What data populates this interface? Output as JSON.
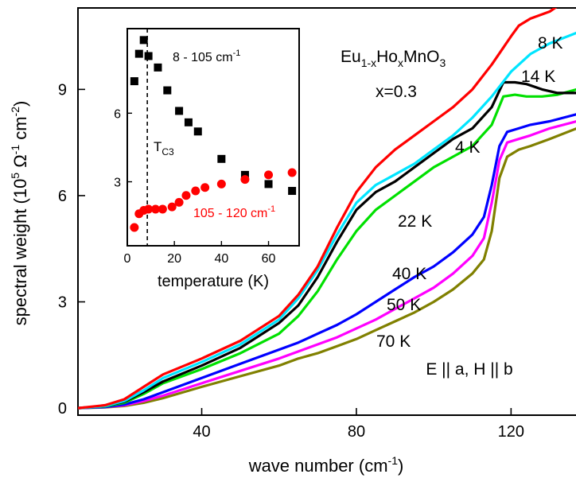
{
  "chart_data": [
    {
      "type": "line",
      "xlabel_main": "wave number (cm",
      "xlabel_sup": "-1",
      "xlabel_close": ")",
      "ylabel_main": "spectral weight (10",
      "ylabel_sup1": "5",
      "ylabel_unit": " Ω",
      "ylabel_sup2": "-1",
      "ylabel_unit2": " cm",
      "ylabel_sup3": "-2",
      "ylabel_close": ")",
      "xlim": [
        8,
        137
      ],
      "ylim": [
        -0.2,
        11.3
      ],
      "xticks": [
        40,
        80,
        120
      ],
      "yticks": [
        0,
        3,
        6,
        9
      ],
      "compound": {
        "p1": "Eu",
        "s1": "1-x",
        "p2": "Ho",
        "s2": "x",
        "p3": "MnO",
        "s3": "3"
      },
      "composition": "x=0.3",
      "polarization": "E || a, H || b",
      "series": [
        {
          "name": "8 K",
          "color": "#ff0000",
          "x": [
            8,
            15,
            20,
            25,
            30,
            40,
            50,
            60,
            65,
            70,
            75,
            80,
            85,
            90,
            95,
            100,
            105,
            110,
            115,
            120,
            122,
            125,
            130,
            134,
            137
          ],
          "y": [
            0,
            0.08,
            0.25,
            0.6,
            0.95,
            1.4,
            1.9,
            2.6,
            3.2,
            4.0,
            5.1,
            6.1,
            6.8,
            7.3,
            7.7,
            8.1,
            8.5,
            9.0,
            9.7,
            10.5,
            10.8,
            11.0,
            11.2,
            11.5,
            11.7
          ]
        },
        {
          "name": "14 K",
          "color": "#00e5ff",
          "x": [
            8,
            15,
            20,
            25,
            30,
            40,
            50,
            60,
            65,
            70,
            75,
            80,
            85,
            90,
            95,
            100,
            105,
            110,
            115,
            120,
            125,
            130,
            137
          ],
          "y": [
            0,
            0.06,
            0.2,
            0.5,
            0.85,
            1.3,
            1.8,
            2.5,
            3.1,
            3.9,
            4.9,
            5.8,
            6.3,
            6.6,
            6.9,
            7.3,
            7.7,
            8.2,
            8.8,
            9.5,
            10.0,
            10.3,
            10.6
          ]
        },
        {
          "name": "4 K",
          "color": "#000000",
          "x": [
            8,
            15,
            20,
            25,
            30,
            40,
            50,
            60,
            65,
            70,
            75,
            80,
            85,
            90,
            95,
            100,
            105,
            110,
            115,
            118,
            121,
            124,
            128,
            132,
            137
          ],
          "y": [
            0,
            0.06,
            0.18,
            0.45,
            0.75,
            1.2,
            1.7,
            2.4,
            2.9,
            3.7,
            4.7,
            5.6,
            6.1,
            6.4,
            6.8,
            7.2,
            7.6,
            7.9,
            8.5,
            9.2,
            9.2,
            9.15,
            9.0,
            8.9,
            8.9
          ]
        },
        {
          "name": "22 K",
          "color": "#00e000",
          "x": [
            8,
            15,
            20,
            25,
            30,
            40,
            50,
            60,
            65,
            70,
            75,
            80,
            85,
            90,
            95,
            100,
            105,
            110,
            115,
            118,
            121,
            124,
            128,
            132,
            137
          ],
          "y": [
            0,
            0.05,
            0.15,
            0.4,
            0.7,
            1.1,
            1.55,
            2.1,
            2.6,
            3.3,
            4.2,
            5.0,
            5.6,
            6.0,
            6.4,
            6.8,
            7.1,
            7.4,
            8.0,
            8.8,
            8.85,
            8.8,
            8.8,
            8.85,
            9.0
          ]
        },
        {
          "name": "40 K",
          "color": "#0000ff",
          "x": [
            8,
            15,
            20,
            25,
            30,
            40,
            50,
            60,
            65,
            70,
            75,
            80,
            85,
            90,
            95,
            100,
            105,
            110,
            113,
            115,
            117,
            119,
            122,
            125,
            130,
            137
          ],
          "y": [
            0,
            0.03,
            0.1,
            0.25,
            0.45,
            0.85,
            1.25,
            1.65,
            1.85,
            2.1,
            2.35,
            2.65,
            3.0,
            3.35,
            3.7,
            4.0,
            4.4,
            4.9,
            5.4,
            6.3,
            7.4,
            7.8,
            7.9,
            8.0,
            8.1,
            8.3
          ]
        },
        {
          "name": "50 K",
          "color": "#ff00ff",
          "x": [
            8,
            15,
            20,
            25,
            30,
            40,
            50,
            60,
            65,
            70,
            75,
            80,
            85,
            90,
            95,
            100,
            105,
            110,
            113,
            115,
            117,
            119,
            122,
            125,
            130,
            137
          ],
          "y": [
            0,
            0.03,
            0.08,
            0.2,
            0.35,
            0.7,
            1.05,
            1.4,
            1.6,
            1.8,
            2.0,
            2.25,
            2.5,
            2.8,
            3.1,
            3.4,
            3.8,
            4.3,
            4.8,
            5.8,
            7.0,
            7.5,
            7.6,
            7.7,
            7.9,
            8.1
          ]
        },
        {
          "name": "70 K",
          "color": "#808000",
          "x": [
            8,
            15,
            20,
            25,
            30,
            40,
            50,
            60,
            65,
            70,
            75,
            80,
            85,
            90,
            95,
            100,
            105,
            110,
            113,
            115,
            117,
            119,
            122,
            125,
            130,
            137
          ],
          "y": [
            0,
            0.02,
            0.06,
            0.15,
            0.28,
            0.6,
            0.9,
            1.2,
            1.4,
            1.55,
            1.75,
            1.95,
            2.2,
            2.45,
            2.7,
            3.0,
            3.35,
            3.8,
            4.2,
            5.0,
            6.5,
            7.1,
            7.3,
            7.4,
            7.6,
            7.9
          ]
        }
      ]
    },
    {
      "type": "scatter",
      "xlabel": "temperature (K)",
      "ylabel": "",
      "xlim": [
        0,
        73
      ],
      "ylim": [
        0.2,
        9.7
      ],
      "xticks": [
        0,
        20,
        40,
        60
      ],
      "yticks": [
        3,
        6
      ],
      "vline_x": 8.5,
      "vline_label": "T",
      "vline_label_sub": "C3",
      "series": [
        {
          "name": "8 - 105 cm",
          "name_sup": "-1",
          "color": "#000000",
          "marker": "square",
          "x": [
            3,
            5,
            7,
            9,
            13,
            17,
            22,
            26,
            30,
            40,
            50,
            60,
            70
          ],
          "y": [
            7.4,
            8.6,
            9.2,
            8.5,
            8.0,
            7.0,
            6.1,
            5.6,
            5.2,
            4.0,
            3.3,
            2.9,
            2.6
          ]
        },
        {
          "name": "105 - 120 cm",
          "name_sup": "-1",
          "color": "#ff0000",
          "marker": "circle",
          "x": [
            3,
            5,
            7,
            9,
            12,
            15,
            19,
            22,
            25,
            29,
            33,
            40,
            50,
            60,
            70
          ],
          "y": [
            1.0,
            1.6,
            1.75,
            1.8,
            1.8,
            1.8,
            1.9,
            2.1,
            2.4,
            2.6,
            2.75,
            2.9,
            3.1,
            3.3,
            3.4
          ]
        }
      ]
    }
  ]
}
